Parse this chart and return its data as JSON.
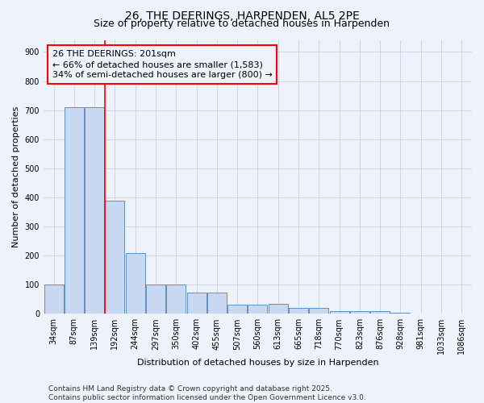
{
  "title": "26, THE DEERINGS, HARPENDEN, AL5 2PE",
  "subtitle": "Size of property relative to detached houses in Harpenden",
  "xlabel": "Distribution of detached houses by size in Harpenden",
  "ylabel": "Number of detached properties",
  "categories": [
    "34sqm",
    "87sqm",
    "139sqm",
    "192sqm",
    "244sqm",
    "297sqm",
    "350sqm",
    "402sqm",
    "455sqm",
    "507sqm",
    "560sqm",
    "613sqm",
    "665sqm",
    "718sqm",
    "770sqm",
    "823sqm",
    "876sqm",
    "928sqm",
    "981sqm",
    "1033sqm",
    "1086sqm"
  ],
  "values": [
    100,
    710,
    710,
    390,
    210,
    100,
    100,
    72,
    72,
    32,
    32,
    35,
    20,
    20,
    10,
    10,
    10,
    5,
    0,
    0,
    0
  ],
  "bar_color": "#c8d8f0",
  "bar_edge_color": "#6090c0",
  "vline_x_index": 3,
  "vline_color": "red",
  "annotation_line1": "26 THE DEERINGS: 201sqm",
  "annotation_line2": "← 66% of detached houses are smaller (1,583)",
  "annotation_line3": "34% of semi-detached houses are larger (800) →",
  "annotation_box_color": "red",
  "ylim": [
    0,
    940
  ],
  "yticks": [
    0,
    100,
    200,
    300,
    400,
    500,
    600,
    700,
    800,
    900
  ],
  "footer": "Contains HM Land Registry data © Crown copyright and database right 2025.\nContains public sector information licensed under the Open Government Licence v3.0.",
  "background_color": "#eef2fa",
  "grid_color": "#c8d0e8",
  "title_fontsize": 10,
  "subtitle_fontsize": 9,
  "axis_label_fontsize": 8,
  "tick_fontsize": 7,
  "annotation_fontsize": 8,
  "footer_fontsize": 6.5
}
